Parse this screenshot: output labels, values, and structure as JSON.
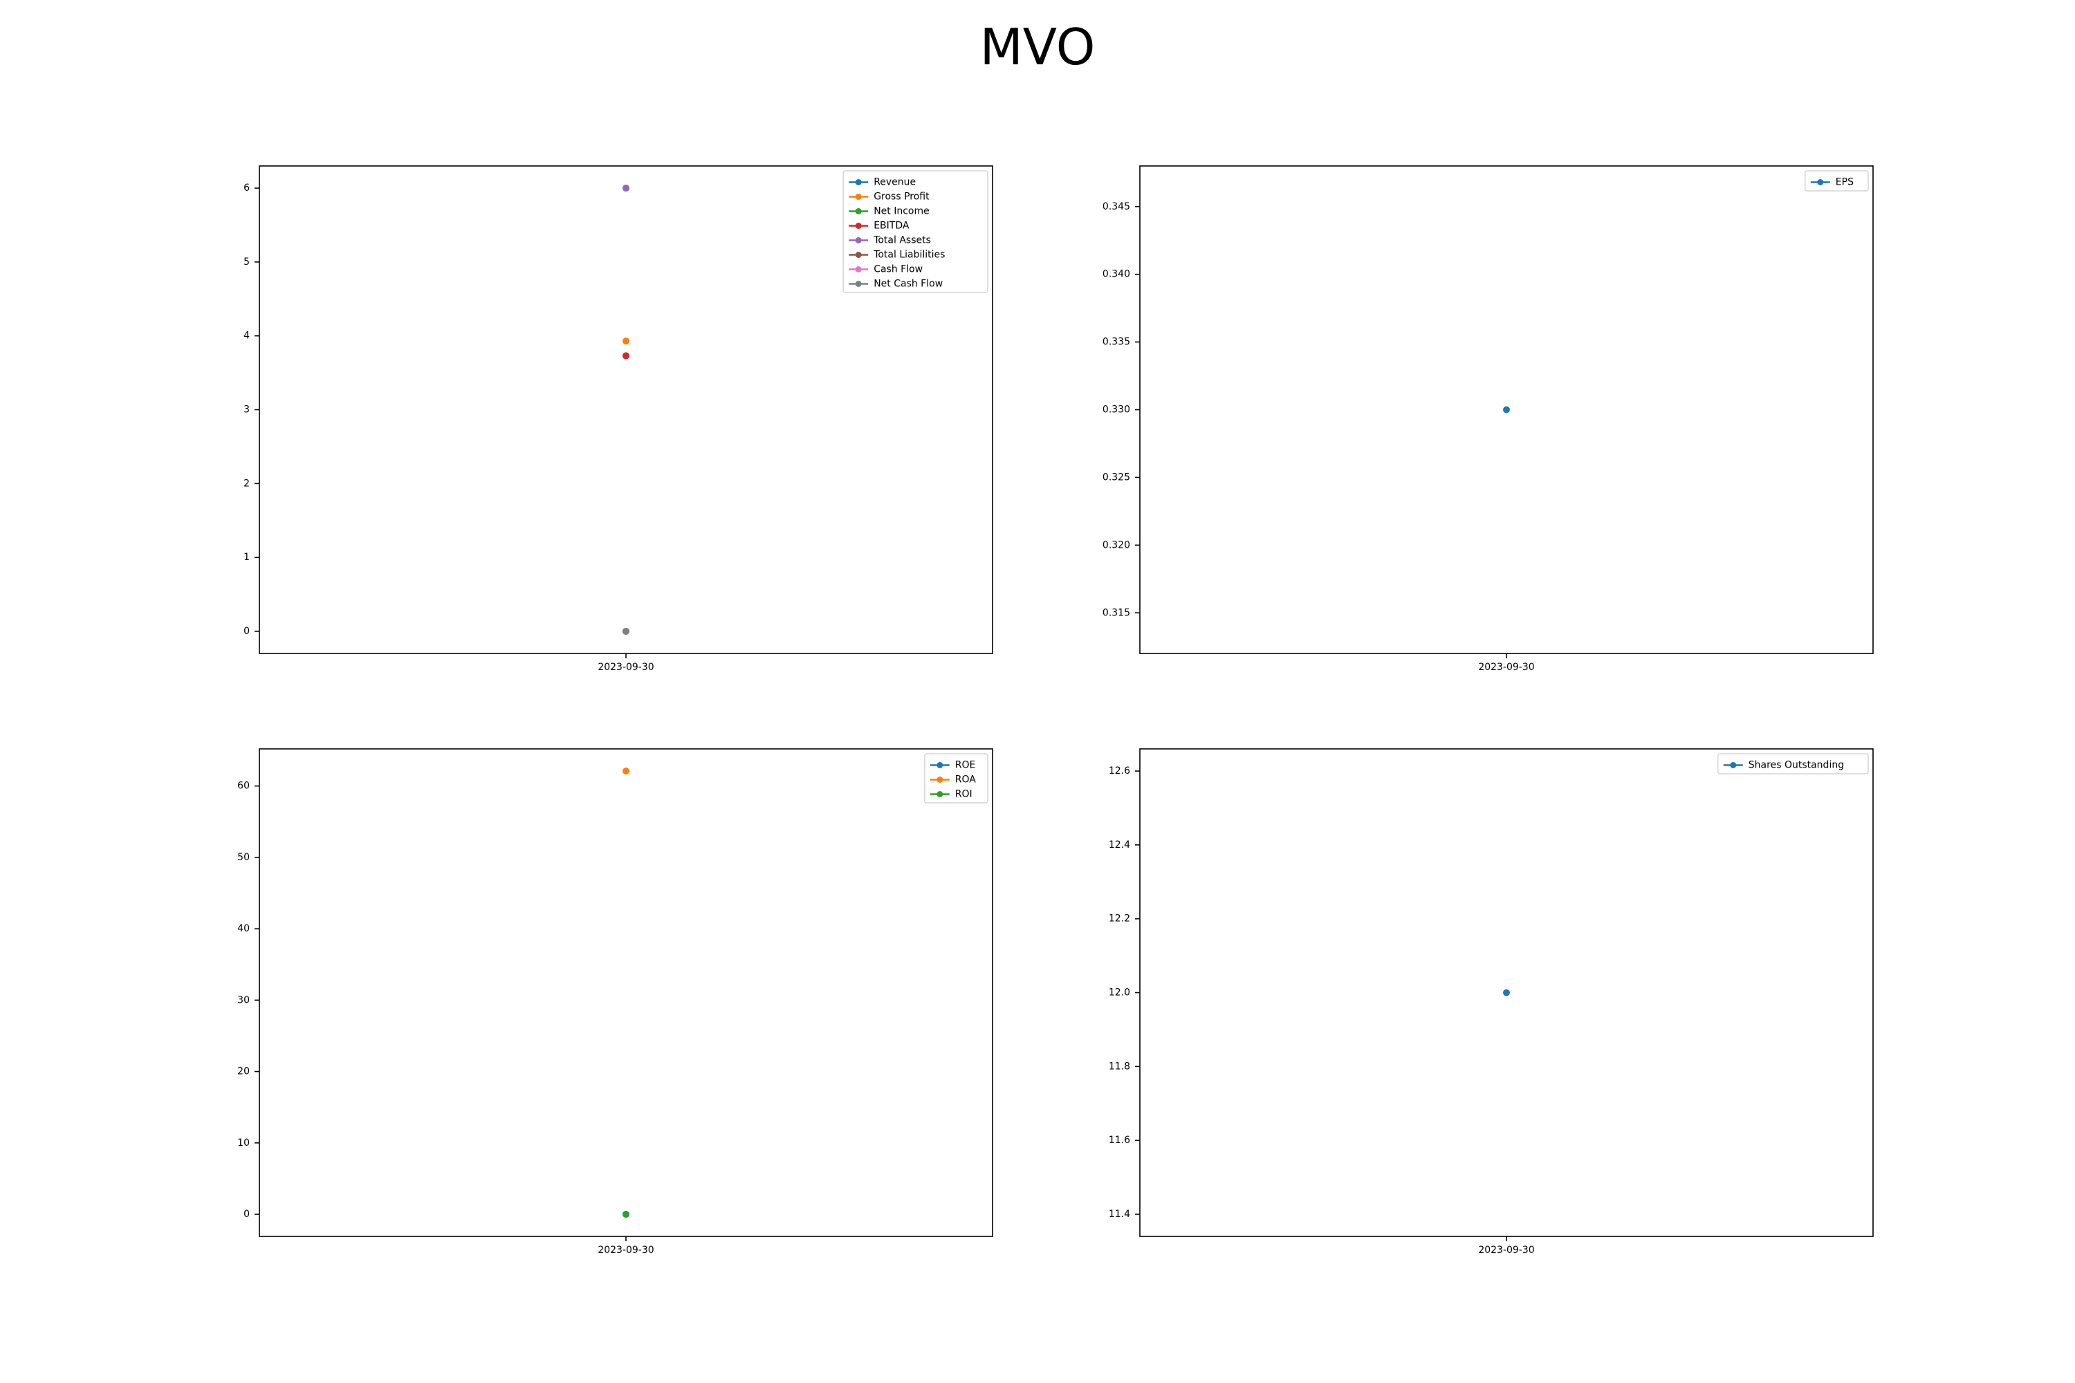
{
  "figure": {
    "title": "MVO"
  },
  "colors": {
    "blue": "#1f77b4",
    "orange": "#ff7f0e",
    "green": "#2ca02c",
    "red": "#d62728",
    "purple": "#9467bd",
    "brown": "#8c564b",
    "pink": "#e377c2",
    "gray": "#7f7f7f"
  },
  "chart_data": [
    {
      "type": "line",
      "title": "",
      "x": [
        "2023-09-30"
      ],
      "ylim": [
        -0.3,
        6.3
      ],
      "yticks": [
        "0",
        "1",
        "2",
        "3",
        "4",
        "5",
        "6"
      ],
      "legend": "top-right",
      "grid": false,
      "series": [
        {
          "name": "Revenue",
          "color": "#1f77b4",
          "values": [
            6.0
          ]
        },
        {
          "name": "Gross Profit",
          "color": "#ff7f0e",
          "values": [
            3.93
          ]
        },
        {
          "name": "Net Income",
          "color": "#2ca02c",
          "values": [
            3.73
          ]
        },
        {
          "name": "EBITDA",
          "color": "#d62728",
          "values": [
            3.73
          ]
        },
        {
          "name": "Total Assets",
          "color": "#9467bd",
          "values": [
            6.0
          ]
        },
        {
          "name": "Total Liabilities",
          "color": "#8c564b",
          "values": [
            0.0
          ]
        },
        {
          "name": "Cash Flow",
          "color": "#e377c2",
          "values": [
            0.0
          ]
        },
        {
          "name": "Net Cash Flow",
          "color": "#7f7f7f",
          "values": [
            0.0
          ]
        }
      ]
    },
    {
      "type": "line",
      "title": "",
      "x": [
        "2023-09-30"
      ],
      "ylim": [
        0.312,
        0.348
      ],
      "yticks": [
        "0.315",
        "0.320",
        "0.325",
        "0.330",
        "0.335",
        "0.340",
        "0.345"
      ],
      "legend": "top-right",
      "grid": false,
      "series": [
        {
          "name": "EPS",
          "color": "#1f77b4",
          "values": [
            0.33
          ]
        }
      ]
    },
    {
      "type": "line",
      "title": "",
      "x": [
        "2023-09-30"
      ],
      "ylim": [
        -3.1,
        65.2
      ],
      "yticks": [
        "0",
        "10",
        "20",
        "30",
        "40",
        "50",
        "60"
      ],
      "legend": "top-right",
      "grid": false,
      "series": [
        {
          "name": "ROE",
          "color": "#1f77b4",
          "values": [
            0.0
          ]
        },
        {
          "name": "ROA",
          "color": "#ff7f0e",
          "values": [
            62.1
          ]
        },
        {
          "name": "ROI",
          "color": "#2ca02c",
          "values": [
            0.0
          ]
        }
      ]
    },
    {
      "type": "line",
      "title": "",
      "x": [
        "2023-09-30"
      ],
      "ylim": [
        11.34,
        12.66
      ],
      "yticks": [
        "11.4",
        "11.6",
        "11.8",
        "12.0",
        "12.2",
        "12.4",
        "12.6"
      ],
      "legend": "top-right",
      "grid": false,
      "series": [
        {
          "name": "Shares Outstanding",
          "color": "#1f77b4",
          "values": [
            12.0
          ]
        }
      ]
    }
  ]
}
